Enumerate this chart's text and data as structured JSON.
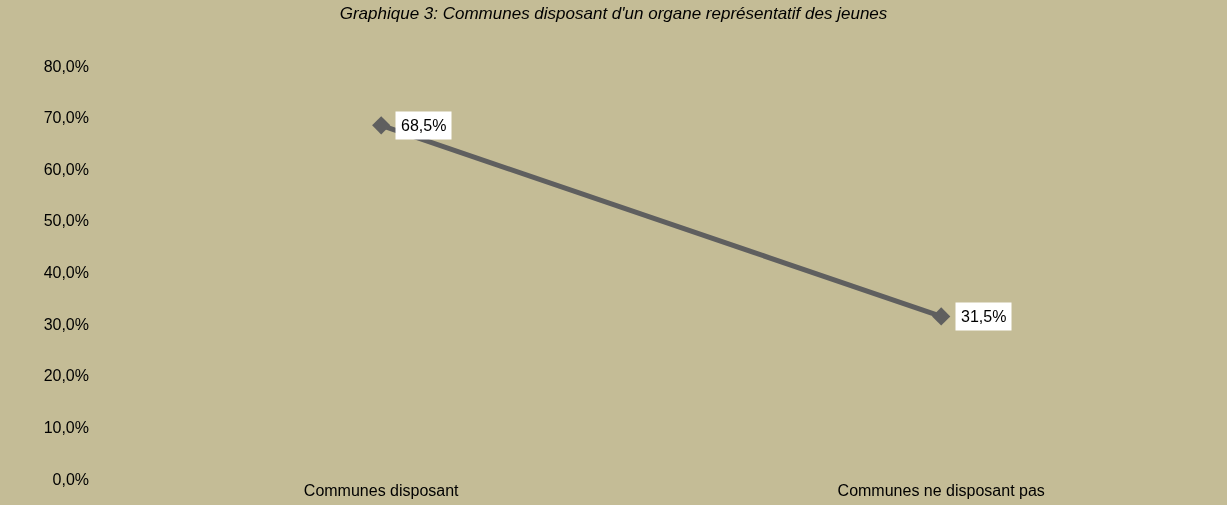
{
  "chart_data": {
    "type": "line",
    "title": "Graphique 3: Communes disposant d'un organe représentatif des jeunes",
    "categories": [
      "Communes disposant",
      "Communes ne disposant pas"
    ],
    "series": [
      {
        "color": "#5f5f5f",
        "values": [
          68.5,
          31.5
        ],
        "value_labels": [
          "68,5%",
          "31,5%"
        ]
      }
    ],
    "ylim": [
      0,
      80
    ],
    "yticks": [
      {
        "value": 0,
        "label": "0,0%"
      },
      {
        "value": 10,
        "label": "10,0%"
      },
      {
        "value": 20,
        "label": "20,0%"
      },
      {
        "value": 30,
        "label": "30,0%"
      },
      {
        "value": 40,
        "label": "40,0%"
      },
      {
        "value": 50,
        "label": "50,0%"
      },
      {
        "value": 60,
        "label": "60,0%"
      },
      {
        "value": 70,
        "label": "70,0%"
      },
      {
        "value": 80,
        "label": "80,0%"
      }
    ],
    "grid": false,
    "marker": "diamond",
    "line_style": "solid"
  }
}
